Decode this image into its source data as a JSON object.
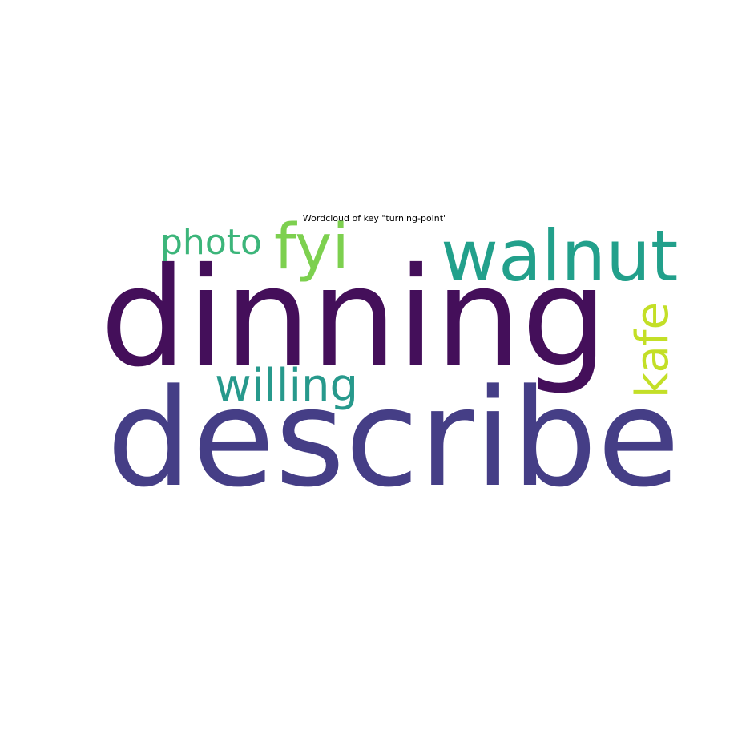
{
  "chart_data": {
    "type": "wordcloud",
    "title": "Wordcloud of key \"turning-point\"",
    "background": "#ffffff",
    "words": [
      {
        "text": "dinning",
        "weight": 1.0,
        "color": "#440f5a",
        "rotated": false
      },
      {
        "text": "describe",
        "weight": 0.98,
        "color": "#453e86",
        "rotated": false
      },
      {
        "text": "walnut",
        "weight": 0.55,
        "color": "#22a08b",
        "rotated": false
      },
      {
        "text": "fyi",
        "weight": 0.48,
        "color": "#7dd04f",
        "rotated": false
      },
      {
        "text": "willing",
        "weight": 0.4,
        "color": "#27998c",
        "rotated": false
      },
      {
        "text": "photo",
        "weight": 0.32,
        "color": "#3cb57a",
        "rotated": false
      },
      {
        "text": "kafe",
        "weight": 0.38,
        "color": "#c3df27",
        "rotated": true
      }
    ]
  }
}
